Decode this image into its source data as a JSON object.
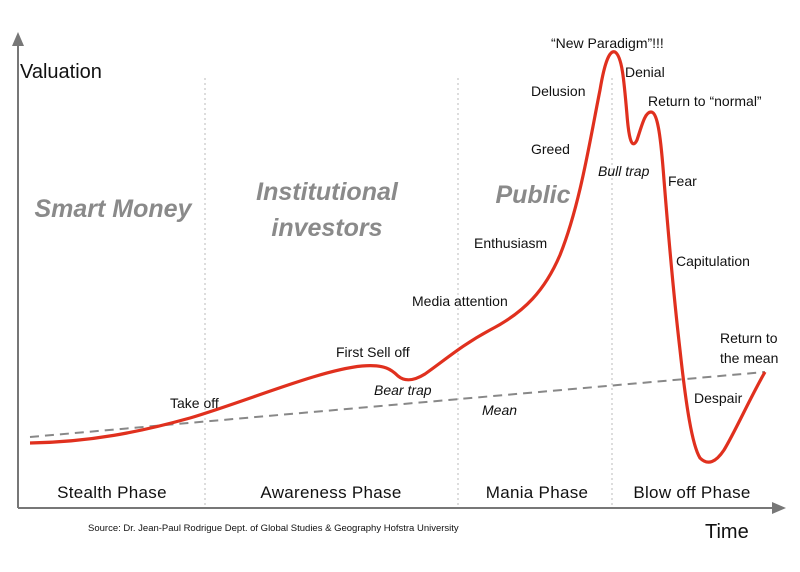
{
  "axes": {
    "y_label": "Valuation",
    "x_label": "Time"
  },
  "phases": [
    "Stealth Phase",
    "Awareness Phase",
    "Mania Phase",
    "Blow off Phase"
  ],
  "participants": [
    [
      "Smart Money"
    ],
    [
      "Institutional",
      "investors"
    ],
    [
      "Public"
    ]
  ],
  "annotations": {
    "take_off": "Take off",
    "first_sell_off": "First Sell off",
    "bear_trap": "Bear trap",
    "media_attention": "Media attention",
    "enthusiasm": "Enthusiasm",
    "greed": "Greed",
    "delusion": "Delusion",
    "new_paradigm": "“New Paradigm”!!!",
    "denial": "Denial",
    "return_to_normal": "Return to “normal”",
    "bull_trap": "Bull trap",
    "fear": "Fear",
    "capitulation": "Capitulation",
    "despair": "Despair",
    "return_to_mean": [
      "Return to",
      "the mean"
    ],
    "mean": "Mean"
  },
  "source": "Source: Dr. Jean-Paul Rodrigue Dept. of Global Studies & Geography Hofstra University"
}
